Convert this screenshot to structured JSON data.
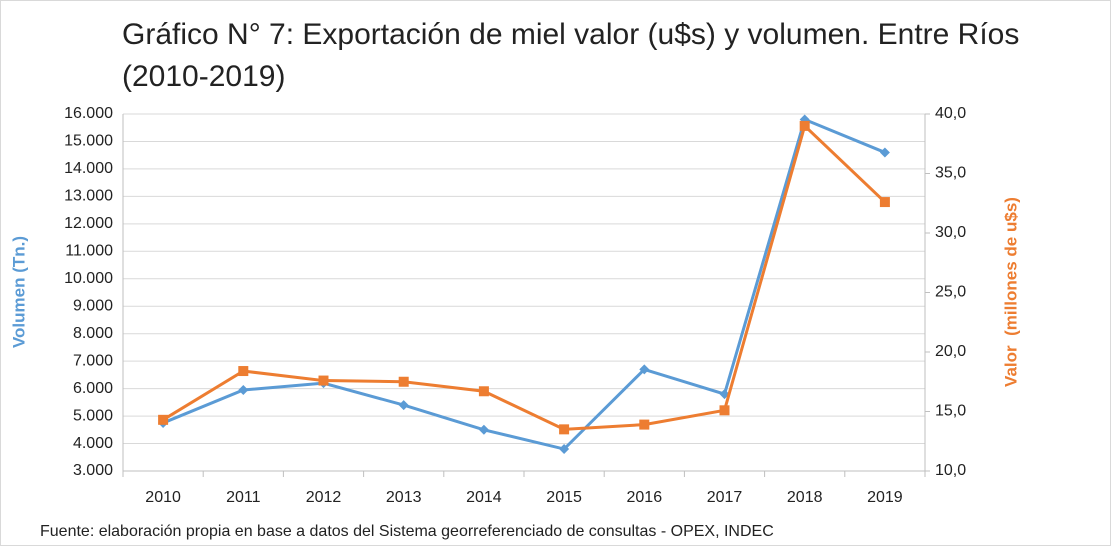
{
  "chart_data": {
    "type": "line",
    "title": "Gráfico N° 7: Exportación de miel valor (u$s) y volumen. Entre Ríos (2010-2019)",
    "ylabel": "Volumen (Tn.)",
    "y2label": "Valor  (millones de u$s)",
    "note": "Fuente: elaboración propia en base a datos del Sistema georreferenciado de consultas - OPEX,  INDEC",
    "categories": [
      "2010",
      "2011",
      "2012",
      "2013",
      "2014",
      "2015",
      "2016",
      "2017",
      "2018",
      "2019"
    ],
    "series": [
      {
        "color": "#5b9bd5",
        "marker": "diamond",
        "values": [
          4750,
          5950,
          6200,
          5400,
          4500,
          3800,
          6700,
          5800,
          15800,
          14600
        ]
      },
      {
        "color": "#ed7d31",
        "marker": "square",
        "axis": "y2",
        "values": [
          14.3,
          18.4,
          17.6,
          17.5,
          16.7,
          13.5,
          13.9,
          15.1,
          39.0,
          32.6
        ]
      }
    ],
    "ylim": [
      3000,
      16000
    ],
    "yticks": [
      {
        "value": 3000,
        "label": "3.000"
      },
      {
        "value": 4000,
        "label": "4.000"
      },
      {
        "value": 5000,
        "label": "5.000"
      },
      {
        "value": 6000,
        "label": "6.000"
      },
      {
        "value": 7000,
        "label": "7.000"
      },
      {
        "value": 8000,
        "label": "8.000"
      },
      {
        "value": 9000,
        "label": "9.000"
      },
      {
        "value": 10000,
        "label": "10.000"
      },
      {
        "value": 11000,
        "label": "11.000"
      },
      {
        "value": 12000,
        "label": "12.000"
      },
      {
        "value": 13000,
        "label": "13.000"
      },
      {
        "value": 14000,
        "label": "14.000"
      },
      {
        "value": 15000,
        "label": "15.000"
      },
      {
        "value": 16000,
        "label": "16.000"
      }
    ],
    "y2lim": [
      10,
      40
    ],
    "y2ticks": [
      {
        "value": 10,
        "label": "10,0"
      },
      {
        "value": 15,
        "label": "15,0"
      },
      {
        "value": 20,
        "label": "20,0"
      },
      {
        "value": 25,
        "label": "25,0"
      },
      {
        "value": 30,
        "label": "30,0"
      },
      {
        "value": 35,
        "label": "35,0"
      },
      {
        "value": 40,
        "label": "40,0"
      }
    ],
    "grid": true
  }
}
